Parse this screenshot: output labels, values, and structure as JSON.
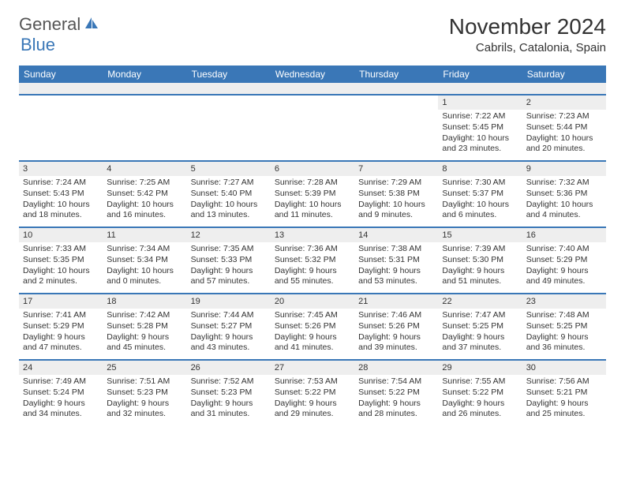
{
  "logo": {
    "part1": "General",
    "part2": "Blue"
  },
  "title": "November 2024",
  "location": "Cabrils, Catalonia, Spain",
  "colors": {
    "header_bg": "#3a77b7",
    "daynum_bg": "#eeeeee",
    "week_border": "#3a77b7",
    "text": "#333333",
    "page_bg": "#ffffff"
  },
  "fonts": {
    "title_size": 28,
    "location_size": 15,
    "dow_size": 12,
    "cell_size": 10.5
  },
  "days_of_week": [
    "Sunday",
    "Monday",
    "Tuesday",
    "Wednesday",
    "Thursday",
    "Friday",
    "Saturday"
  ],
  "weeks": [
    [
      null,
      null,
      null,
      null,
      null,
      {
        "n": "1",
        "sunrise": "Sunrise: 7:22 AM",
        "sunset": "Sunset: 5:45 PM",
        "daylight": "Daylight: 10 hours and 23 minutes."
      },
      {
        "n": "2",
        "sunrise": "Sunrise: 7:23 AM",
        "sunset": "Sunset: 5:44 PM",
        "daylight": "Daylight: 10 hours and 20 minutes."
      }
    ],
    [
      {
        "n": "3",
        "sunrise": "Sunrise: 7:24 AM",
        "sunset": "Sunset: 5:43 PM",
        "daylight": "Daylight: 10 hours and 18 minutes."
      },
      {
        "n": "4",
        "sunrise": "Sunrise: 7:25 AM",
        "sunset": "Sunset: 5:42 PM",
        "daylight": "Daylight: 10 hours and 16 minutes."
      },
      {
        "n": "5",
        "sunrise": "Sunrise: 7:27 AM",
        "sunset": "Sunset: 5:40 PM",
        "daylight": "Daylight: 10 hours and 13 minutes."
      },
      {
        "n": "6",
        "sunrise": "Sunrise: 7:28 AM",
        "sunset": "Sunset: 5:39 PM",
        "daylight": "Daylight: 10 hours and 11 minutes."
      },
      {
        "n": "7",
        "sunrise": "Sunrise: 7:29 AM",
        "sunset": "Sunset: 5:38 PM",
        "daylight": "Daylight: 10 hours and 9 minutes."
      },
      {
        "n": "8",
        "sunrise": "Sunrise: 7:30 AM",
        "sunset": "Sunset: 5:37 PM",
        "daylight": "Daylight: 10 hours and 6 minutes."
      },
      {
        "n": "9",
        "sunrise": "Sunrise: 7:32 AM",
        "sunset": "Sunset: 5:36 PM",
        "daylight": "Daylight: 10 hours and 4 minutes."
      }
    ],
    [
      {
        "n": "10",
        "sunrise": "Sunrise: 7:33 AM",
        "sunset": "Sunset: 5:35 PM",
        "daylight": "Daylight: 10 hours and 2 minutes."
      },
      {
        "n": "11",
        "sunrise": "Sunrise: 7:34 AM",
        "sunset": "Sunset: 5:34 PM",
        "daylight": "Daylight: 10 hours and 0 minutes."
      },
      {
        "n": "12",
        "sunrise": "Sunrise: 7:35 AM",
        "sunset": "Sunset: 5:33 PM",
        "daylight": "Daylight: 9 hours and 57 minutes."
      },
      {
        "n": "13",
        "sunrise": "Sunrise: 7:36 AM",
        "sunset": "Sunset: 5:32 PM",
        "daylight": "Daylight: 9 hours and 55 minutes."
      },
      {
        "n": "14",
        "sunrise": "Sunrise: 7:38 AM",
        "sunset": "Sunset: 5:31 PM",
        "daylight": "Daylight: 9 hours and 53 minutes."
      },
      {
        "n": "15",
        "sunrise": "Sunrise: 7:39 AM",
        "sunset": "Sunset: 5:30 PM",
        "daylight": "Daylight: 9 hours and 51 minutes."
      },
      {
        "n": "16",
        "sunrise": "Sunrise: 7:40 AM",
        "sunset": "Sunset: 5:29 PM",
        "daylight": "Daylight: 9 hours and 49 minutes."
      }
    ],
    [
      {
        "n": "17",
        "sunrise": "Sunrise: 7:41 AM",
        "sunset": "Sunset: 5:29 PM",
        "daylight": "Daylight: 9 hours and 47 minutes."
      },
      {
        "n": "18",
        "sunrise": "Sunrise: 7:42 AM",
        "sunset": "Sunset: 5:28 PM",
        "daylight": "Daylight: 9 hours and 45 minutes."
      },
      {
        "n": "19",
        "sunrise": "Sunrise: 7:44 AM",
        "sunset": "Sunset: 5:27 PM",
        "daylight": "Daylight: 9 hours and 43 minutes."
      },
      {
        "n": "20",
        "sunrise": "Sunrise: 7:45 AM",
        "sunset": "Sunset: 5:26 PM",
        "daylight": "Daylight: 9 hours and 41 minutes."
      },
      {
        "n": "21",
        "sunrise": "Sunrise: 7:46 AM",
        "sunset": "Sunset: 5:26 PM",
        "daylight": "Daylight: 9 hours and 39 minutes."
      },
      {
        "n": "22",
        "sunrise": "Sunrise: 7:47 AM",
        "sunset": "Sunset: 5:25 PM",
        "daylight": "Daylight: 9 hours and 37 minutes."
      },
      {
        "n": "23",
        "sunrise": "Sunrise: 7:48 AM",
        "sunset": "Sunset: 5:25 PM",
        "daylight": "Daylight: 9 hours and 36 minutes."
      }
    ],
    [
      {
        "n": "24",
        "sunrise": "Sunrise: 7:49 AM",
        "sunset": "Sunset: 5:24 PM",
        "daylight": "Daylight: 9 hours and 34 minutes."
      },
      {
        "n": "25",
        "sunrise": "Sunrise: 7:51 AM",
        "sunset": "Sunset: 5:23 PM",
        "daylight": "Daylight: 9 hours and 32 minutes."
      },
      {
        "n": "26",
        "sunrise": "Sunrise: 7:52 AM",
        "sunset": "Sunset: 5:23 PM",
        "daylight": "Daylight: 9 hours and 31 minutes."
      },
      {
        "n": "27",
        "sunrise": "Sunrise: 7:53 AM",
        "sunset": "Sunset: 5:22 PM",
        "daylight": "Daylight: 9 hours and 29 minutes."
      },
      {
        "n": "28",
        "sunrise": "Sunrise: 7:54 AM",
        "sunset": "Sunset: 5:22 PM",
        "daylight": "Daylight: 9 hours and 28 minutes."
      },
      {
        "n": "29",
        "sunrise": "Sunrise: 7:55 AM",
        "sunset": "Sunset: 5:22 PM",
        "daylight": "Daylight: 9 hours and 26 minutes."
      },
      {
        "n": "30",
        "sunrise": "Sunrise: 7:56 AM",
        "sunset": "Sunset: 5:21 PM",
        "daylight": "Daylight: 9 hours and 25 minutes."
      }
    ]
  ]
}
